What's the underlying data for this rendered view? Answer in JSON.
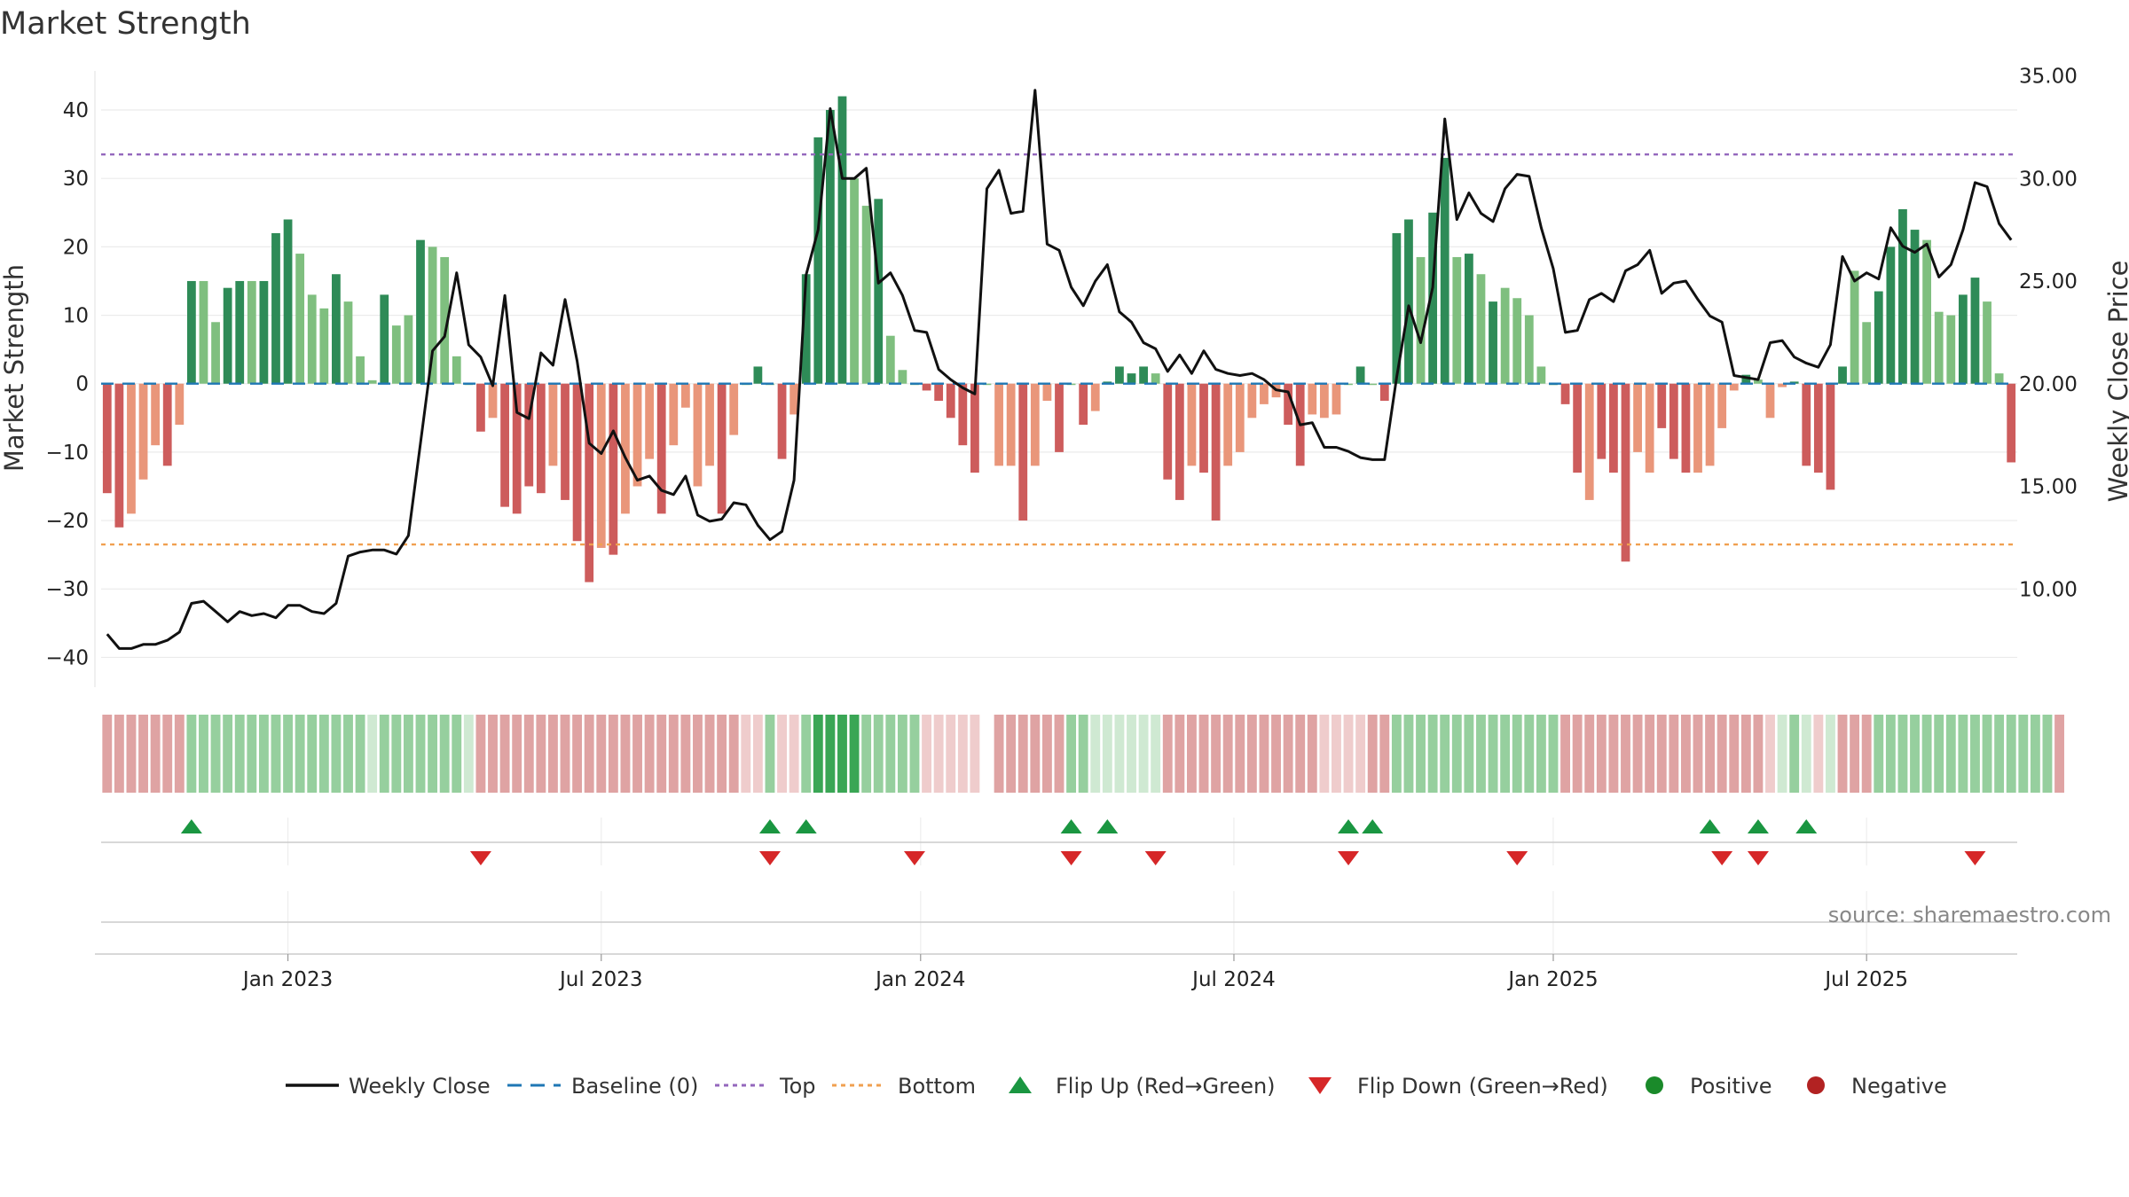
{
  "title": "Market Strength",
  "source": "source: sharemaestro.com",
  "colors": {
    "close_line": "#111111",
    "baseline": "#1f77b4",
    "top": "#9467bd",
    "bottom": "#f0a050",
    "flip_up": "#1a9641",
    "flip_down": "#d62728",
    "positive": "#1a8a2a",
    "negative": "#b22222",
    "pos_strong": "#2e8b57",
    "pos_light": "#7fbf7f",
    "neg_strong": "#cd5c5c",
    "neg_light": "#e9967a",
    "grid": "#ebebeb"
  },
  "chart_data": {
    "type": "bar",
    "title": "Market Strength",
    "ylabel": "Market Strength",
    "y2label": "Weekly Close Price",
    "ylim": [
      -45,
      47
    ],
    "y2lim": [
      5.0,
      35.67
    ],
    "y_ticks": [
      "40",
      "30",
      "20",
      "10",
      "0",
      "−10",
      "−20",
      "−30",
      "−40"
    ],
    "y_tick_values": [
      40,
      30,
      20,
      10,
      0,
      -10,
      -20,
      -30,
      -40
    ],
    "y2_ticks": [
      "35.00",
      "30.00",
      "25.00",
      "20.00",
      "15.00",
      "10.00"
    ],
    "y2_tick_values": [
      35,
      30,
      25,
      20,
      15,
      10
    ],
    "x_ticks": [
      "Jan 2023",
      "Jul 2023",
      "Jan 2024",
      "Jul 2024",
      "Jan 2025",
      "Jul 2025"
    ],
    "x_tick_indices": [
      15,
      41,
      67.5,
      93.5,
      120,
      146
    ],
    "top_level": 33.5,
    "bottom_level": -23.5,
    "baseline": 0,
    "series": [
      {
        "name": "Market Strength",
        "values": [
          -16,
          -21,
          -19,
          -14,
          -9,
          -12,
          -6,
          15,
          15,
          9,
          14,
          15,
          15,
          15,
          22,
          24,
          19,
          13,
          11,
          16,
          12,
          4,
          0.5,
          13,
          8.5,
          10,
          21,
          20,
          18.5,
          4,
          0,
          -7,
          -5,
          -18,
          -19,
          -15,
          -16,
          -12,
          -17,
          -23,
          -29,
          -24,
          -25,
          -19,
          -15,
          -11,
          -19,
          -9,
          -3.5,
          -15,
          -12,
          -19,
          -7.5,
          0,
          2.5,
          0,
          -11,
          -4.5,
          16,
          36,
          40,
          42,
          30,
          26,
          27,
          7,
          2,
          0,
          -1,
          -2.5,
          -5,
          -9,
          -13,
          0,
          -12,
          -12,
          -20,
          -12,
          -2.5,
          -10,
          0,
          -6,
          -4,
          0.3,
          2.5,
          1.5,
          2.5,
          1.5,
          -14,
          -17,
          -12,
          -13,
          -20,
          -12,
          -10,
          -5,
          -3,
          -2,
          -6,
          -12,
          -4.5,
          -5,
          -4.5,
          0,
          2.5,
          0,
          -2.5,
          22,
          24,
          18.5,
          25,
          33,
          18.5,
          19,
          16,
          12,
          14,
          12.5,
          10,
          2.5,
          0,
          -3,
          -13,
          -17,
          -11,
          -13,
          -26,
          -10,
          -13,
          -6.5,
          -11,
          -13,
          -13,
          -12,
          -6.5,
          -1,
          1.3,
          0.6,
          -5,
          -0.5,
          0.3,
          -12,
          -13,
          -15.5,
          2.5,
          16.5,
          9,
          13.5,
          20,
          25.5,
          22.5,
          21,
          10.5,
          10,
          13,
          15.5,
          12,
          1.5,
          -11.5
        ],
        "shade": [
          "m",
          "s",
          "l",
          "l",
          "l",
          "s",
          "l",
          "s",
          "l",
          "l",
          "s",
          "s",
          "l",
          "s",
          "s",
          "s",
          "l",
          "l",
          "l",
          "s",
          "l",
          "l",
          "l",
          "s",
          "l",
          "l",
          "s",
          "l",
          "l",
          "l",
          "l",
          "s",
          "l",
          "s",
          "s",
          "s",
          "s",
          "l",
          "s",
          "s",
          "s",
          "l",
          "s",
          "l",
          "l",
          "l",
          "s",
          "l",
          "l",
          "l",
          "l",
          "s",
          "l",
          "l",
          "s",
          "l",
          "s",
          "l",
          "s",
          "s",
          "s",
          "s",
          "l",
          "l",
          "s",
          "l",
          "l",
          "l",
          "s",
          "s",
          "s",
          "s",
          "s",
          "l",
          "l",
          "l",
          "s",
          "l",
          "l",
          "s",
          "l",
          "s",
          "l",
          "s",
          "s",
          "s",
          "s",
          "l",
          "s",
          "s",
          "l",
          "s",
          "s",
          "l",
          "l",
          "l",
          "l",
          "l",
          "s",
          "s",
          "l",
          "l",
          "l",
          "l",
          "s",
          "l",
          "s",
          "s",
          "s",
          "l",
          "s",
          "s",
          "l",
          "s",
          "l",
          "s",
          "l",
          "l",
          "l",
          "l",
          "s",
          "s",
          "s",
          "l",
          "s",
          "s",
          "s",
          "l",
          "l",
          "s",
          "s",
          "s",
          "l",
          "l",
          "l",
          "l",
          "s",
          "l",
          "l",
          "l",
          "s",
          "s",
          "s",
          "s",
          "s",
          "l",
          "l",
          "s",
          "s",
          "s",
          "s",
          "l",
          "l",
          "l",
          "s",
          "s",
          "l",
          "l",
          "s"
        ],
        "x_start": "2022-10-21",
        "x_step_days": 7
      },
      {
        "name": "Weekly Close",
        "values": [
          7.8,
          7.1,
          7.1,
          7.3,
          7.3,
          7.5,
          7.9,
          9.3,
          9.4,
          8.9,
          8.4,
          8.9,
          8.7,
          8.8,
          8.6,
          9.2,
          9.2,
          8.9,
          8.8,
          9.3,
          11.6,
          11.8,
          11.9,
          11.9,
          11.7,
          12.6,
          17.1,
          21.6,
          22.3,
          25.4,
          21.9,
          21.3,
          19.9,
          24.3,
          18.6,
          18.3,
          21.5,
          20.9,
          24.1,
          21.1,
          17.1,
          16.6,
          17.7,
          16.4,
          15.3,
          15.5,
          14.8,
          14.6,
          15.5,
          13.6,
          13.3,
          13.4,
          14.2,
          14.1,
          13.1,
          12.4,
          12.8,
          15.3,
          25.3,
          27.5,
          33.4,
          30.0,
          30.0,
          30.5,
          24.9,
          25.4,
          24.3,
          22.6,
          22.5,
          20.7,
          20.2,
          19.8,
          19.5,
          29.5,
          30.4,
          28.3,
          28.4,
          34.3,
          26.8,
          26.5,
          24.7,
          23.8,
          25.0,
          25.8,
          23.5,
          23.0,
          22.0,
          21.7,
          20.6,
          21.4,
          20.5,
          21.6,
          20.7,
          20.5,
          20.4,
          20.5,
          20.2,
          19.7,
          19.6,
          18.0,
          18.1,
          16.9,
          16.9,
          16.7,
          16.4,
          16.3,
          16.3,
          20.3,
          23.8,
          22.0,
          24.7,
          32.9,
          28.0,
          29.3,
          28.3,
          27.9,
          29.5,
          30.2,
          30.1,
          27.6,
          25.6,
          22.5,
          22.6,
          24.1,
          24.4,
          24.0,
          25.5,
          25.8,
          26.5,
          24.4,
          24.9,
          25.0,
          24.1,
          23.3,
          23.0,
          20.4,
          20.3,
          20.2,
          22.0,
          22.1,
          21.3,
          21.0,
          20.8,
          21.9,
          26.2,
          25.0,
          25.4,
          25.1,
          27.6,
          26.7,
          26.4,
          26.8,
          25.2,
          25.8,
          27.5,
          29.8,
          29.6,
          27.8,
          27.0
        ],
        "axis": "right"
      }
    ],
    "status_strip": [
      "r",
      "r",
      "r",
      "r",
      "r",
      "r",
      "r",
      "g",
      "g",
      "g",
      "g",
      "g",
      "g",
      "g",
      "g",
      "g",
      "g",
      "g",
      "g",
      "g",
      "g",
      "g",
      "gl",
      "g",
      "g",
      "g",
      "g",
      "g",
      "g",
      "g",
      "gl",
      "r",
      "r",
      "r",
      "r",
      "r",
      "r",
      "r",
      "r",
      "r",
      "r",
      "r",
      "r",
      "r",
      "r",
      "r",
      "r",
      "r",
      "r",
      "r",
      "r",
      "r",
      "r",
      "rl",
      "rl",
      "g",
      "rl",
      "rl",
      "g",
      "G",
      "G",
      "G",
      "G",
      "g",
      "g",
      "g",
      "g",
      "g",
      "rl",
      "rl",
      "rl",
      "rl",
      "rl",
      "",
      "r",
      "r",
      "r",
      "r",
      "r",
      "r",
      "g",
      "g",
      "gl",
      "gl",
      "gl",
      "gl",
      "gl",
      "gl",
      "r",
      "r",
      "r",
      "r",
      "r",
      "r",
      "r",
      "r",
      "r",
      "r",
      "r",
      "r",
      "r",
      "rl",
      "rl",
      "rl",
      "rl",
      "r",
      "r",
      "g",
      "g",
      "g",
      "g",
      "g",
      "g",
      "g",
      "g",
      "g",
      "g",
      "g",
      "g",
      "g",
      "g",
      "r",
      "r",
      "r",
      "r",
      "r",
      "r",
      "r",
      "r",
      "r",
      "r",
      "r",
      "r",
      "r",
      "r",
      "r",
      "r",
      "r",
      "rl",
      "gl",
      "g",
      "gl",
      "rl",
      "gl",
      "r",
      "r",
      "r",
      "g",
      "g",
      "g",
      "g",
      "g",
      "g",
      "g",
      "g",
      "g",
      "g",
      "g",
      "g",
      "g",
      "g",
      "g",
      "r"
    ],
    "flip_up_indices": [
      7,
      55,
      58,
      80,
      83,
      103,
      105,
      133,
      137,
      141
    ],
    "flip_down_indices": [
      31,
      55,
      67,
      80,
      87,
      103,
      117,
      134,
      137,
      155
    ],
    "legend": [
      {
        "label": "Weekly Close",
        "kind": "line"
      },
      {
        "label": "Baseline (0)",
        "kind": "dash"
      },
      {
        "label": "Top",
        "kind": "dot-purple"
      },
      {
        "label": "Bottom",
        "kind": "dot-orange"
      },
      {
        "label": "Flip Up (Red→Green)",
        "kind": "tri-up"
      },
      {
        "label": "Flip Down (Green→Red)",
        "kind": "tri-down"
      },
      {
        "label": "Positive",
        "kind": "dot-green"
      },
      {
        "label": "Negative",
        "kind": "dot-red"
      }
    ]
  }
}
